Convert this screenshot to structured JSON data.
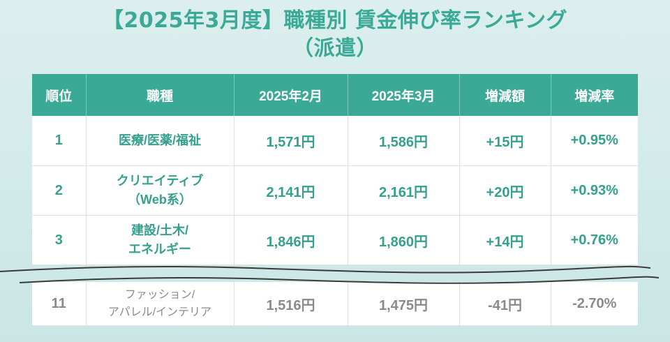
{
  "title": {
    "line1": "【2025年3月度】職種別 賃金伸び率ランキング",
    "line2": "（派遣）"
  },
  "colors": {
    "accent": "#3aa995",
    "muted_text": "#8a8a8a",
    "background": "#d2ebea"
  },
  "table": {
    "headers": [
      "順位",
      "職種",
      "2025年2月",
      "2025年3月",
      "増減額",
      "増減率"
    ],
    "rows": [
      {
        "rank": "1",
        "job_line1": "医療/医薬/福祉",
        "job_line2": "",
        "feb": "1,571円",
        "mar": "1,586円",
        "diff": "+15円",
        "rate": "+0.95%"
      },
      {
        "rank": "2",
        "job_line1": "クリエイティブ",
        "job_line2": "（Web系）",
        "feb": "2,141円",
        "mar": "2,161円",
        "diff": "+20円",
        "rate": "+0.93%"
      },
      {
        "rank": "3",
        "job_line1": "建設/土木/",
        "job_line2": "エネルギー",
        "feb": "1,846円",
        "mar": "1,860円",
        "diff": "+14円",
        "rate": "+0.76%"
      }
    ],
    "omitted_row": {
      "rank": "11",
      "job_line1": "ファッション/",
      "job_line2": "アパレル/インテリア",
      "feb": "1,516円",
      "mar": "1,475円",
      "diff": "-41円",
      "rate": "-2.70%"
    }
  }
}
